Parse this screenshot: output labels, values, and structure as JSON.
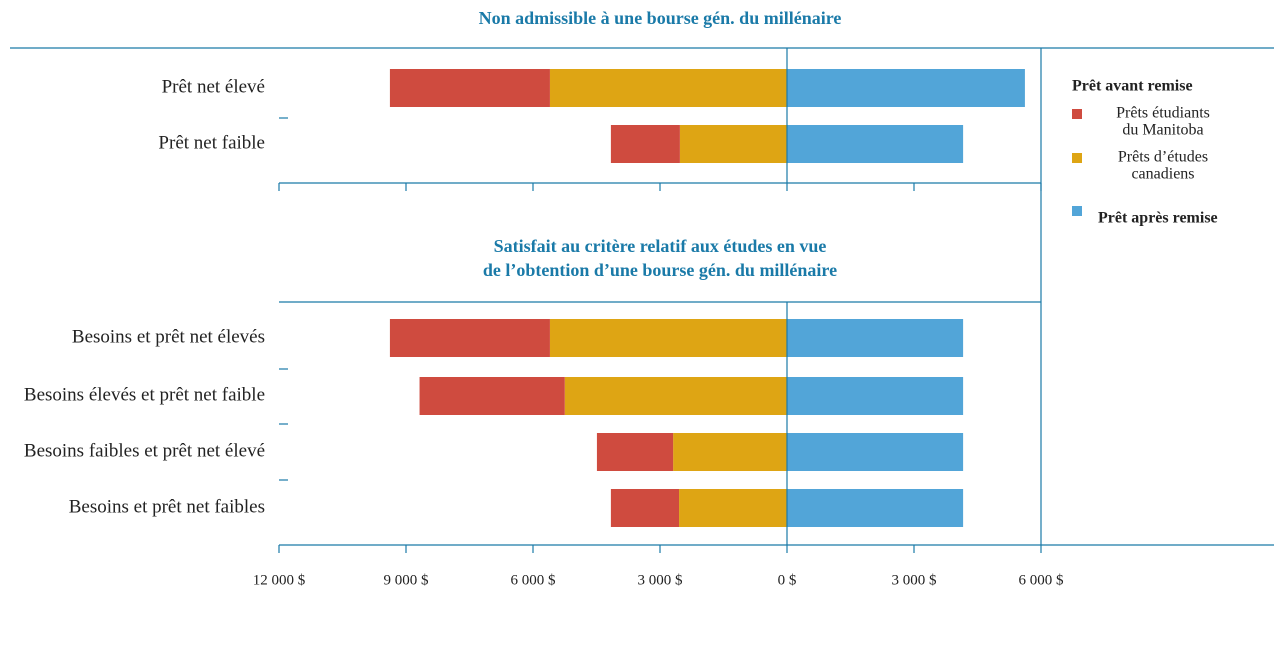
{
  "chart_data": [
    {
      "type": "bar",
      "orientation": "horizontal",
      "title": "Non admissible à une bourse gén. du millénaire",
      "legend_title": "Prêt avant remise",
      "categories": [
        "Prêt net élevé",
        "Prêt net faible"
      ],
      "series": [
        {
          "name": "Prêts étudiants du Manitoba",
          "color": "#cf4b3f",
          "values": [
            -3780,
            -1630
          ]
        },
        {
          "name": "Prêts d’études canadiens",
          "color": "#dea514",
          "values": [
            -5600,
            -2530
          ]
        },
        {
          "name": "Prêt après remise",
          "color": "#52a5d8",
          "values": [
            5620,
            4160
          ]
        }
      ],
      "xlim": [
        -12000,
        6000
      ],
      "xticks": [
        -12000,
        -9000,
        -6000,
        -3000,
        0,
        3000,
        6000
      ]
    },
    {
      "type": "bar",
      "orientation": "horizontal",
      "title": "Satisfait au critère relatif aux études en vue de l’obtention d’une bourse gén. du millénaire",
      "categories": [
        "Besoins et prêt net élevés",
        "Besoins élevés et prêt net faible",
        "Besoins faibles et prêt net élevé",
        "Besoins et prêt net faibles"
      ],
      "series": [
        {
          "color": "#cf4b3f",
          "values": [
            -3780,
            -3430,
            -1800,
            -1610
          ]
        },
        {
          "color": "#dea514",
          "values": [
            -5600,
            -5250,
            -2690,
            -2550
          ]
        },
        {
          "color": "#52a5d8",
          "values": [
            4160,
            4160,
            4160,
            4160
          ]
        }
      ],
      "xlim": [
        -12000,
        6000
      ],
      "xticks": [
        {
          "value": -12000,
          "label": "12 000 $"
        },
        {
          "value": -9000,
          "label": "9 000 $"
        },
        {
          "value": -6000,
          "label": "6 000 $"
        },
        {
          "value": -3000,
          "label": "3 000 $"
        },
        {
          "value": 0,
          "label": "0 $"
        },
        {
          "value": 3000,
          "label": "3 000 $"
        },
        {
          "value": 6000,
          "label": "6 000 $"
        }
      ]
    }
  ]
}
